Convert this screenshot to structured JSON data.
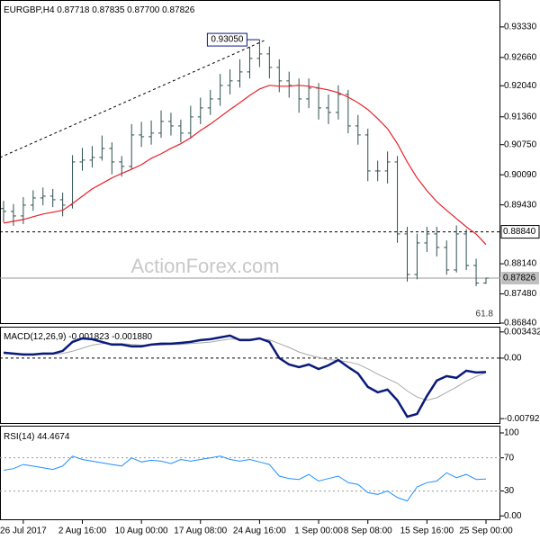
{
  "header": {
    "symbol": "EURGBP,H4",
    "ohlc": [
      "0.87718",
      "0.87835",
      "0.87700",
      "0.87826"
    ]
  },
  "watermark": "ActionForex.com",
  "chart_data": [
    {
      "type": "ohlc",
      "categories": [
        null,
        null,
        "26 Jul 2017",
        null,
        null,
        null,
        null,
        null,
        "2 Aug 16:00",
        null,
        null,
        null,
        null,
        null,
        "10 Aug 00:00",
        null,
        null,
        null,
        null,
        null,
        "17 Aug 08:00",
        null,
        null,
        null,
        null,
        null,
        "24 Aug 16:00",
        null,
        null,
        null,
        null,
        null,
        "1 Sep 00:00",
        null,
        null,
        null,
        null,
        "8 Sep 08:00",
        null,
        null,
        null,
        null,
        null,
        "15 Sep 16:00",
        null,
        null,
        null,
        null,
        null,
        "25 Sep 00:00"
      ],
      "color": "#2f4f4f",
      "open": [
        0.8935,
        0.89287,
        0.89188,
        0.89425,
        0.89582,
        0.89622,
        0.89543,
        0.89425,
        0.90371,
        0.90411,
        0.9047,
        0.90667,
        0.90371,
        0.90273,
        0.90963,
        0.90924,
        0.91003,
        0.91259,
        0.9116,
        0.91003,
        0.91358,
        0.91555,
        0.91752,
        0.92048,
        0.92147,
        0.92344,
        0.9264,
        0.92738,
        0.92442,
        0.92147,
        0.92048,
        0.91752,
        0.91989,
        0.91555,
        0.91456,
        0.91851,
        0.9116,
        0.90963,
        0.90174,
        0.90174,
        0.90371,
        0.88794,
        0.87906,
        0.88596,
        0.88794,
        0.88498,
        0.88005,
        0.88794,
        0.88103,
        0.87718
      ],
      "high": [
        0.8952,
        0.8945,
        0.896,
        0.8975,
        0.8981,
        0.8978,
        0.897,
        0.9052,
        0.9068,
        0.9072,
        0.9095,
        0.908,
        0.905,
        0.912,
        0.9125,
        0.9128,
        0.915,
        0.9145,
        0.913,
        0.916,
        0.9178,
        0.9195,
        0.923,
        0.924,
        0.9262,
        0.929,
        0.9305,
        0.929,
        0.9262,
        0.9235,
        0.922,
        0.922,
        0.921,
        0.9185,
        0.9205,
        0.9195,
        0.914,
        0.911,
        0.904,
        0.906,
        0.905,
        0.8895,
        0.888,
        0.8895,
        0.8895,
        0.8865,
        0.8898,
        0.889,
        0.8825,
        0.87835
      ],
      "low": [
        0.8905,
        0.8897,
        0.8901,
        0.893,
        0.8942,
        0.8938,
        0.8918,
        0.8935,
        0.9018,
        0.9025,
        0.904,
        0.901,
        0.9005,
        0.902,
        0.907,
        0.9075,
        0.909,
        0.9095,
        0.908,
        0.9088,
        0.912,
        0.914,
        0.916,
        0.9185,
        0.92,
        0.922,
        0.9245,
        0.922,
        0.919,
        0.9178,
        0.9145,
        0.9155,
        0.913,
        0.912,
        0.913,
        0.91,
        0.9075,
        0.8995,
        0.8995,
        0.899,
        0.886,
        0.8775,
        0.878,
        0.884,
        0.883,
        0.879,
        0.8795,
        0.88,
        0.8765,
        0.877
      ],
      "close": [
        0.89287,
        0.89188,
        0.89425,
        0.89582,
        0.89622,
        0.89543,
        0.89425,
        0.90371,
        0.90411,
        0.9047,
        0.90667,
        0.90371,
        0.90273,
        0.90963,
        0.90924,
        0.91003,
        0.91259,
        0.9116,
        0.91003,
        0.91358,
        0.91555,
        0.91752,
        0.92048,
        0.92147,
        0.92344,
        0.9264,
        0.92738,
        0.92442,
        0.92147,
        0.92048,
        0.91752,
        0.91989,
        0.91555,
        0.91456,
        0.91851,
        0.9116,
        0.90963,
        0.90174,
        0.90174,
        0.90371,
        0.88794,
        0.87906,
        0.88596,
        0.88794,
        0.88498,
        0.88005,
        0.88794,
        0.88103,
        0.87718,
        0.87826
      ],
      "ma": {
        "color": "#e8202a",
        "values": [
          0.8903,
          0.8907,
          0.8911,
          0.8917,
          0.8923,
          0.8927,
          0.8931,
          0.8946,
          0.8962,
          0.8978,
          0.899,
          0.9002,
          0.9012,
          0.9021,
          0.9031,
          0.9045,
          0.9055,
          0.9067,
          0.9077,
          0.909,
          0.9106,
          0.912,
          0.9136,
          0.9152,
          0.9167,
          0.9183,
          0.9197,
          0.9205,
          0.9203,
          0.9203,
          0.9205,
          0.9203,
          0.9199,
          0.9195,
          0.9189,
          0.9179,
          0.9167,
          0.9152,
          0.9132,
          0.911,
          0.9077,
          0.9037,
          0.9002,
          0.8974,
          0.895,
          0.8931,
          0.8913,
          0.8895,
          0.8879,
          0.8856
        ]
      },
      "ylim": [
        0.8684,
        0.9388
      ],
      "yticks": [
        {
          "value": 0.9333,
          "label": "0.93330"
        },
        {
          "value": 0.9266,
          "label": "0.92660"
        },
        {
          "value": 0.9204,
          "label": "0.92040"
        },
        {
          "value": 0.9136,
          "label": "0.91360"
        },
        {
          "value": 0.9075,
          "label": "0.90750"
        },
        {
          "value": 0.9009,
          "label": "0.90090"
        },
        {
          "value": 0.8943,
          "label": "0.89430"
        },
        {
          "value": 0.8814,
          "label": "0.88140"
        },
        {
          "value": 0.8748,
          "label": "0.87480"
        },
        {
          "value": 0.8684,
          "label": "0.86840"
        }
      ],
      "annotation": {
        "value": 0.9305,
        "label": "0.93050"
      },
      "levels": [
        {
          "value": 0.8884,
          "label": "0.88840",
          "style": "dashed"
        },
        {
          "value": 0.87826,
          "label": "0.87826",
          "style": "solid"
        }
      ],
      "fib_label": "61.8"
    },
    {
      "type": "macd",
      "title": "MACD(12,26,9)",
      "value_labels": [
        "-0.001823",
        "-0.001880"
      ],
      "main": {
        "color": "#0a1a7a",
        "values": [
          0.00071,
          0.00059,
          0.00047,
          0.00047,
          0.00059,
          0.00059,
          0.00094,
          0.00212,
          0.00259,
          0.00248,
          0.00212,
          0.00177,
          0.00177,
          0.00153,
          0.00153,
          0.00177,
          0.00189,
          0.00189,
          0.002,
          0.00212,
          0.00236,
          0.00248,
          0.00271,
          0.00295,
          0.00236,
          0.00236,
          0.00259,
          0.00212,
          0,
          -0.00083,
          -0.00118,
          -0.00083,
          -0.00142,
          -0.00094,
          -0.00024,
          -0.00118,
          -0.002,
          -0.00377,
          -0.00448,
          -0.00413,
          -0.00554,
          -0.00767,
          -0.00731,
          -0.00495,
          -0.00295,
          -0.00236,
          -0.00259,
          -0.00165,
          -0.00189,
          -0.001823
        ]
      },
      "signal": {
        "color": "#a9a9a9",
        "values": [
          0.0006,
          0.0006,
          0.00055,
          0.0005,
          0.0005,
          0.00052,
          0.0006,
          0.0009,
          0.0013,
          0.0017,
          0.0019,
          0.0019,
          0.0019,
          0.0018,
          0.0017,
          0.0017,
          0.0017,
          0.0018,
          0.0018,
          0.0019,
          0.002,
          0.0021,
          0.0023,
          0.0025,
          0.0025,
          0.0025,
          0.0025,
          0.0024,
          0.0019,
          0.0014,
          0.0008,
          0.0004,
          0.0001,
          -0.0002,
          -0.0003,
          -0.0005,
          -0.0008,
          -0.0014,
          -0.0021,
          -0.0027,
          -0.0033,
          -0.0043,
          -0.0051,
          -0.0055,
          -0.0052,
          -0.0045,
          -0.0038,
          -0.003,
          -0.0024,
          -0.00188
        ]
      },
      "ylim": [
        -0.0085,
        0.004
      ],
      "yticks": [
        0.003432,
        {
          "value": 0,
          "label": "0.00"
        },
        -0.007925
      ],
      "levels": [
        0
      ]
    },
    {
      "type": "rsi",
      "title": "RSI(14)",
      "value_label": "44.4674",
      "color": "#1e90ff",
      "values": [
        55,
        57,
        62,
        60,
        58,
        56,
        60,
        72,
        68,
        66,
        64,
        62,
        60,
        70,
        65,
        67,
        66,
        63,
        68,
        66,
        68,
        70,
        72,
        68,
        66,
        68,
        65,
        62,
        48,
        45,
        44,
        50,
        42,
        45,
        48,
        40,
        38,
        28,
        26,
        30,
        22,
        18,
        35,
        40,
        42,
        52,
        46,
        50,
        44,
        44.4674
      ],
      "ylim": [
        -3,
        107.6
      ],
      "yticks": [
        100,
        70,
        30,
        {
          "value": 0,
          "label": "0.00"
        }
      ],
      "levels": [
        70,
        30
      ]
    }
  ]
}
